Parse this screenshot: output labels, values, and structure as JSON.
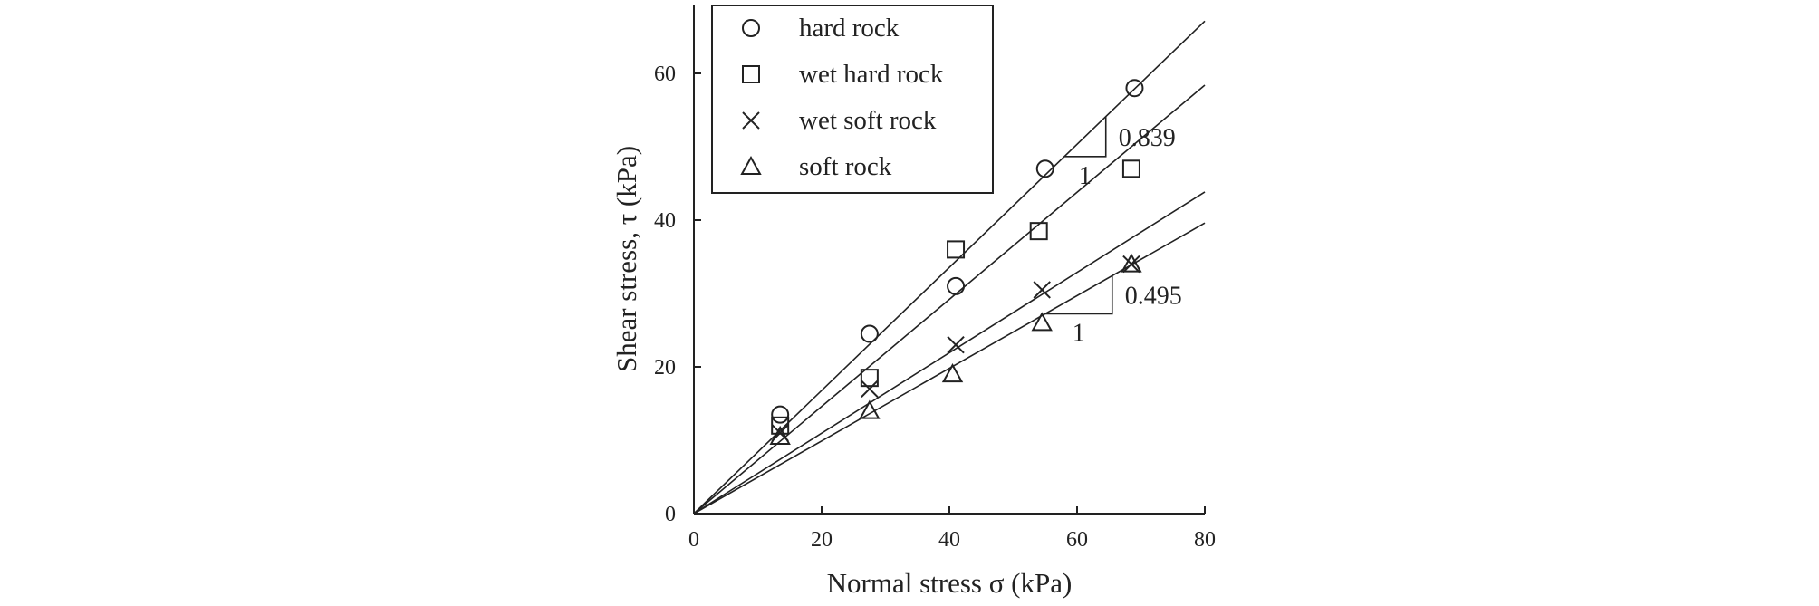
{
  "chart_data": {
    "type": "scatter",
    "xlabel": "Normal stress σ (kPa)",
    "ylabel": "Shear stress, τ (kPa)",
    "xlim": [
      0,
      80
    ],
    "ylim": [
      0,
      70
    ],
    "xticks": [
      0,
      20,
      40,
      60,
      80
    ],
    "yticks": [
      0,
      20,
      40,
      60
    ],
    "xtick_labels": [
      "0",
      "20",
      "40",
      "60",
      "80"
    ],
    "ytick_labels": [
      "0",
      "20",
      "40",
      "60"
    ],
    "grid": false,
    "legend_position": "top-left",
    "series": [
      {
        "name": "hard rock",
        "marker": "circle",
        "x": [
          13.5,
          27.5,
          41,
          55,
          69
        ],
        "y": [
          13.5,
          24.5,
          31,
          47,
          58
        ],
        "fit_slope": 0.839
      },
      {
        "name": "wet hard rock",
        "marker": "square",
        "x": [
          13.5,
          27.5,
          41,
          54,
          68.5
        ],
        "y": [
          12,
          18.5,
          36,
          38.5,
          47
        ],
        "fit_slope": 0.73
      },
      {
        "name": "wet soft rock",
        "marker": "cross",
        "x": [
          13.5,
          27.5,
          41,
          54.5,
          68.5
        ],
        "y": [
          11,
          17,
          23,
          30.5,
          34
        ],
        "fit_slope": 0.548
      },
      {
        "name": "soft rock",
        "marker": "triangle",
        "x": [
          13.5,
          27.5,
          40.5,
          54.5,
          68.5
        ],
        "y": [
          10.5,
          14,
          19,
          26,
          34
        ],
        "fit_slope": 0.495
      }
    ],
    "annotations": [
      {
        "text_rise": "0.839",
        "text_run": "1",
        "series": "hard rock",
        "x_start": 58,
        "run": 6.5
      },
      {
        "text_rise": "0.495",
        "text_run": "1",
        "series": "soft rock",
        "x_start": 55,
        "run": 10.5
      }
    ]
  }
}
